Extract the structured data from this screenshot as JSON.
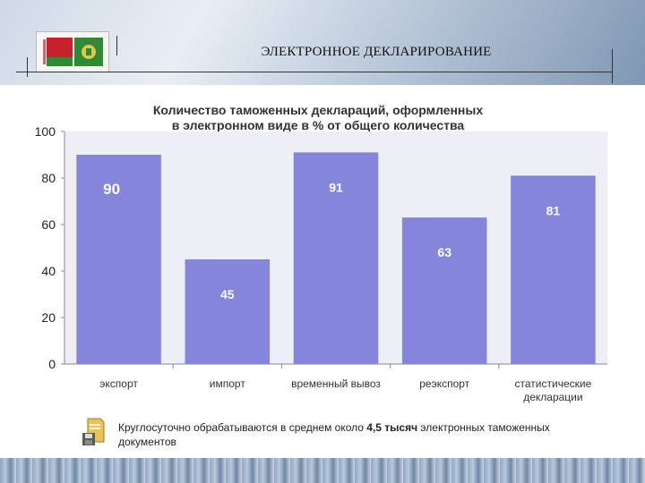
{
  "header": {
    "title": "ЭЛЕКТРОННОЕ ДЕКЛАРИРОВАНИЕ",
    "logo_icon": "belarus-flag-and-customs-emblem"
  },
  "chart_data": {
    "type": "bar",
    "title_line1": "Количество таможенных деклараций, оформленных",
    "title_line2": "в электронном виде в % от общего количества",
    "categories": [
      [
        "экспорт"
      ],
      [
        "импорт"
      ],
      [
        "временный вывоз"
      ],
      [
        "реэкспорт"
      ],
      [
        "статистические",
        "декларации"
      ]
    ],
    "values": [
      90,
      45,
      91,
      63,
      81
    ],
    "data_labels": [
      "90",
      "45",
      "91",
      "63",
      "81"
    ],
    "ylim": [
      0,
      100
    ],
    "yticks": [
      0,
      20,
      40,
      60,
      80,
      100
    ],
    "grid": false,
    "bar_color": "#8585dc",
    "plot_bg": "#eeeef6"
  },
  "caption": {
    "text_before": "Круглосуточно обрабатываются в среднем около ",
    "bold": "4,5 тысяч",
    "text_after": " электронных таможенных документов",
    "icon": "folder-floppy-icon"
  }
}
